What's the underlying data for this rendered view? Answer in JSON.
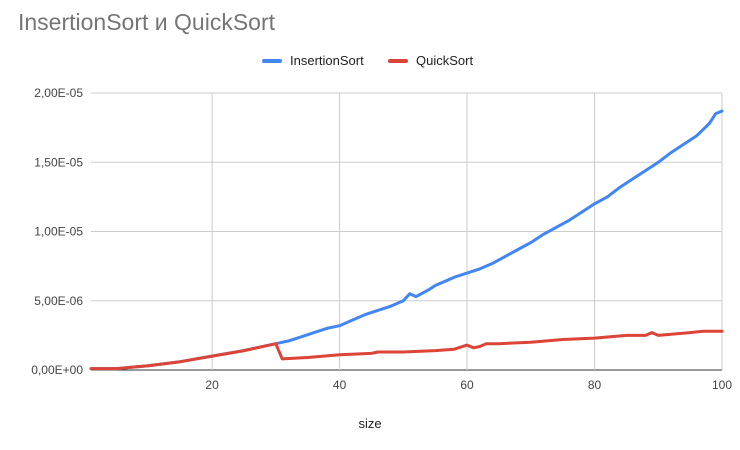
{
  "chart_data": {
    "type": "line",
    "title": "InsertionSort и QuickSort",
    "xlabel": "size",
    "ylabel": "",
    "xlim": [
      1,
      100
    ],
    "ylim": [
      0,
      2e-05
    ],
    "x_ticks": [
      20,
      40,
      60,
      80,
      100
    ],
    "x_tick_labels": [
      "20",
      "40",
      "60",
      "80",
      "100"
    ],
    "y_ticks": [
      0,
      5e-06,
      1e-05,
      1.5e-05,
      2e-05
    ],
    "y_tick_labels": [
      "0,00E+00",
      "5,00E-06",
      "1,00E-05",
      "1,50E-05",
      "2,00E-05"
    ],
    "grid": true,
    "legend_position": "top",
    "series": [
      {
        "name": "InsertionSort",
        "color": "#4285F4",
        "x": [
          1,
          5,
          10,
          15,
          20,
          25,
          30,
          32,
          34,
          36,
          38,
          40,
          42,
          44,
          46,
          48,
          50,
          51,
          52,
          54,
          55,
          56,
          58,
          60,
          62,
          64,
          66,
          68,
          70,
          72,
          74,
          76,
          78,
          80,
          82,
          84,
          86,
          88,
          90,
          92,
          94,
          96,
          98,
          99,
          100
        ],
        "values": [
          1e-07,
          1e-07,
          3e-07,
          6e-07,
          1e-06,
          1.4e-06,
          1.9e-06,
          2.1e-06,
          2.4e-06,
          2.7e-06,
          3e-06,
          3.2e-06,
          3.6e-06,
          4e-06,
          4.3e-06,
          4.6e-06,
          5e-06,
          5.5e-06,
          5.3e-06,
          5.8e-06,
          6.1e-06,
          6.3e-06,
          6.7e-06,
          7e-06,
          7.3e-06,
          7.7e-06,
          8.2e-06,
          8.7e-06,
          9.2e-06,
          9.8e-06,
          1.03e-05,
          1.08e-05,
          1.14e-05,
          1.2e-05,
          1.25e-05,
          1.32e-05,
          1.38e-05,
          1.44e-05,
          1.5e-05,
          1.57e-05,
          1.63e-05,
          1.69e-05,
          1.78e-05,
          1.85e-05,
          1.87e-05
        ]
      },
      {
        "name": "QuickSort",
        "color": "#DB4437",
        "x": [
          1,
          5,
          10,
          15,
          20,
          25,
          30,
          31,
          35,
          40,
          45,
          46,
          50,
          55,
          58,
          60,
          61,
          62,
          63,
          65,
          70,
          75,
          80,
          85,
          88,
          89,
          90,
          95,
          97,
          100
        ],
        "values": [
          1e-07,
          1e-07,
          3e-07,
          6e-07,
          1e-06,
          1.4e-06,
          1.9e-06,
          8e-07,
          9e-07,
          1.1e-06,
          1.2e-06,
          1.3e-06,
          1.3e-06,
          1.4e-06,
          1.5e-06,
          1.8e-06,
          1.6e-06,
          1.7e-06,
          1.9e-06,
          1.9e-06,
          2e-06,
          2.2e-06,
          2.3e-06,
          2.5e-06,
          2.5e-06,
          2.7e-06,
          2.5e-06,
          2.7e-06,
          2.8e-06,
          2.8e-06
        ]
      }
    ]
  }
}
